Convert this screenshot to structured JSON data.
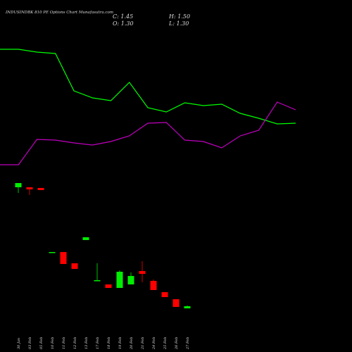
{
  "chart_data": [
    {
      "type": "line",
      "x": [
        0,
        1,
        2,
        3,
        4,
        5,
        6,
        7,
        8,
        9,
        10,
        11,
        12,
        13,
        14,
        15,
        16
      ],
      "xlim": [
        0,
        16
      ],
      "ylim": [
        0,
        100
      ],
      "series": [
        {
          "color": "#00ff00",
          "values": [
            72,
            72,
            70.4,
            69.6,
            48.4,
            44.4,
            42.8,
            53.2,
            38.8,
            36.4,
            41.6,
            40,
            40.8,
            35.6,
            32.8,
            29.6,
            30
          ]
        },
        {
          "color": "#c000c0",
          "values": [
            6.4,
            6.4,
            20.8,
            20.4,
            18.8,
            17.6,
            19.6,
            22.8,
            30,
            30.4,
            20.4,
            19.6,
            16,
            22.8,
            26,
            42,
            37.6
          ]
        }
      ]
    },
    {
      "type": "candlestick",
      "title": "INDUSINDBK 810 PE Options Chart Munafasutra.com",
      "header": [
        "C: 1.45",
        "H: 1.50",
        "O: 1.30",
        "L: 1.30"
      ],
      "up_color": "#00ee00",
      "down_color": "#ff0000",
      "ylim": [
        0.7,
        10.7
      ],
      "categories": [
        "30 Jan",
        "03 Feb",
        "05 Feb",
        "10 Feb",
        "11 Feb",
        "12 Feb",
        "13 Feb",
        "17 Feb",
        "18 Feb",
        "19 Feb",
        "20 Feb",
        "21 Feb",
        "24 Feb",
        "25 Feb",
        "26 Feb",
        "27 Feb"
      ],
      "open": [
        9.9,
        9.9,
        9.85,
        5.3,
        5.3,
        4.5,
        6.15,
        3.3,
        3.0,
        2.75,
        3.0,
        3.95,
        3.25,
        2.45,
        1.95,
        1.3
      ],
      "high": [
        10.2,
        9.9,
        9.85,
        5.3,
        5.3,
        4.5,
        6.35,
        4.5,
        3.0,
        4.0,
        3.85,
        4.65,
        3.35,
        2.45,
        1.95,
        1.5
      ],
      "low": [
        9.5,
        9.35,
        9.7,
        5.3,
        4.45,
        4.1,
        6.15,
        3.3,
        2.75,
        2.75,
        3.0,
        3.15,
        2.6,
        2.1,
        1.4,
        1.3
      ],
      "close": [
        10.2,
        9.75,
        9.7,
        5.3,
        4.45,
        4.1,
        6.35,
        3.3,
        2.75,
        3.9,
        3.6,
        3.75,
        2.6,
        2.1,
        1.4,
        1.45
      ]
    }
  ]
}
